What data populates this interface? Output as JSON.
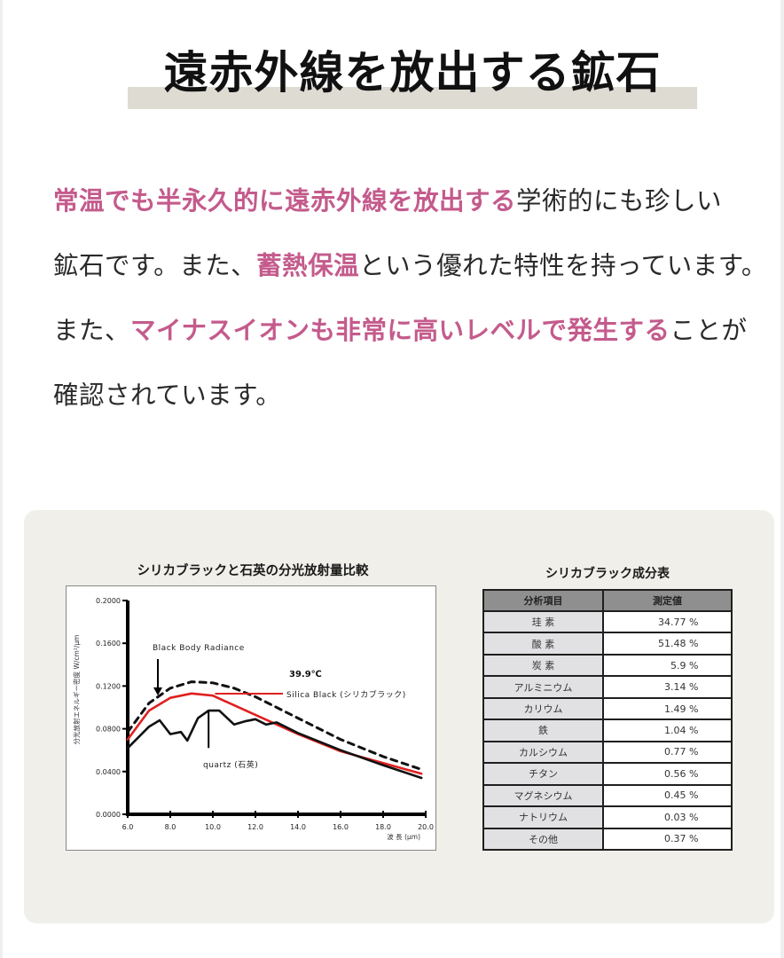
{
  "heading": {
    "title": "遠赤外線を放出する鉱石"
  },
  "intro": {
    "lines": [
      {
        "hl1": "常温でも半永久的に遠赤外線を放出する",
        "t1": "学術的にも珍しい"
      },
      {
        "t1": "鉱石です。また、",
        "hl1": "蓄熱保温",
        "t2": "という優れた特性を持っています。"
      },
      {
        "t1": "また、",
        "hl1": "マイナスイオンも非常に高いレベルで発生する",
        "t2": "ことが"
      },
      {
        "t1": "確認されています。"
      }
    ],
    "highlight_color": "#c45b8c"
  },
  "panel": {
    "chart_title": "シリカブラックと石英の分光放射量比較",
    "table_title": "シリカブラック成分表"
  },
  "chart_data": {
    "type": "line",
    "title": "シリカブラックと石英の分光放射量比較",
    "xlabel": "波 長 (μm)",
    "ylabel": "分光放射エネルギー密度 W/cm²/μm",
    "xlim": [
      6.0,
      20.0
    ],
    "ylim": [
      0.0,
      0.2
    ],
    "x_ticks": [
      "6.0",
      "8.0",
      "10.0",
      "12.0",
      "14.0",
      "16.0",
      "18.0",
      "20.0"
    ],
    "y_ticks": [
      "0.0000",
      "0.0400",
      "0.0800",
      "0.1200",
      "0.1600",
      "0.2000"
    ],
    "grid": false,
    "annotations": [
      "Black Body Radiance",
      "39.9℃",
      "Silica Black (シリカブラック)",
      "quartz (石英)"
    ],
    "series": [
      {
        "name": "Black Body Radiance",
        "style": "dashed",
        "color": "#111111",
        "x": [
          6.0,
          7.0,
          8.0,
          9.0,
          10.0,
          11.0,
          12.0,
          14.0,
          16.0,
          18.0,
          19.8
        ],
        "y": [
          0.077,
          0.104,
          0.118,
          0.124,
          0.123,
          0.118,
          0.11,
          0.09,
          0.07,
          0.054,
          0.042
        ]
      },
      {
        "name": "Silica Black (シリカブラック)",
        "style": "solid",
        "color": "#e02020",
        "x": [
          6.0,
          7.0,
          8.0,
          9.0,
          10.0,
          11.0,
          12.0,
          14.0,
          16.0,
          18.0,
          19.8
        ],
        "y": [
          0.07,
          0.097,
          0.109,
          0.113,
          0.111,
          0.102,
          0.093,
          0.075,
          0.059,
          0.048,
          0.038
        ]
      },
      {
        "name": "quartz (石英)",
        "style": "solid",
        "color": "#111111",
        "x": [
          6.0,
          7.0,
          7.5,
          8.0,
          8.5,
          8.8,
          9.3,
          9.8,
          10.3,
          11.0,
          11.5,
          12.0,
          12.5,
          13.0,
          14.0,
          16.0,
          18.0,
          19.8
        ],
        "y": [
          0.062,
          0.082,
          0.088,
          0.075,
          0.077,
          0.069,
          0.09,
          0.097,
          0.097,
          0.084,
          0.087,
          0.089,
          0.084,
          0.086,
          0.076,
          0.06,
          0.046,
          0.034
        ]
      }
    ]
  },
  "composition_table": {
    "headers": [
      "分析項目",
      "測定値"
    ],
    "rows": [
      [
        "珪 素",
        "34.77 %"
      ],
      [
        "酸 素",
        "51.48 %"
      ],
      [
        "炭 素",
        "5.9 %"
      ],
      [
        "アルミニウム",
        "3.14 %"
      ],
      [
        "カリウム",
        "1.49 %"
      ],
      [
        "鉄",
        "1.04 %"
      ],
      [
        "カルシウム",
        "0.77 %"
      ],
      [
        "チタン",
        "0.56 %"
      ],
      [
        "マグネシウム",
        "0.45 %"
      ],
      [
        "ナトリウム",
        "0.03 %"
      ],
      [
        "その他",
        "0.37 %"
      ]
    ]
  }
}
